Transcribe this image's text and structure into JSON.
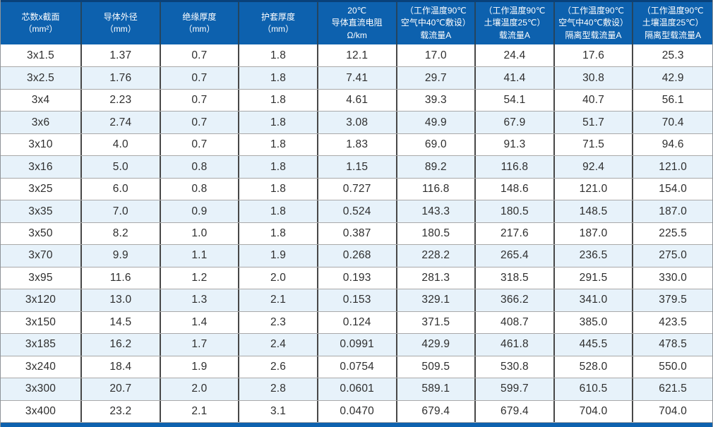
{
  "colors": {
    "header_bg": "#0d61ae",
    "header_top_edge": "#09417a",
    "header_divider": "#24455f",
    "header_text": "#ffffff",
    "row_bg": "#ffffff",
    "row_alt_bg": "#e7f2fa",
    "cell_divider": "#474747",
    "row_line": "#a9a9a9",
    "text": "#2e2e2e"
  },
  "table": {
    "columns": [
      {
        "name": "core-count-section",
        "lines": [
          "芯数x截面",
          "（mm²）"
        ]
      },
      {
        "name": "conductor-od",
        "lines": [
          "导体外径",
          "（mm）"
        ]
      },
      {
        "name": "insulation-thickness",
        "lines": [
          "绝缘厚度",
          "（mm）"
        ]
      },
      {
        "name": "sheath-thickness",
        "lines": [
          "护套厚度",
          "（mm）"
        ]
      },
      {
        "name": "dc-resistance-20c",
        "lines": [
          "20℃",
          "导体直流电阻",
          "Ω/km"
        ]
      },
      {
        "name": "ampacity-air-40c",
        "lines": [
          "（工作温度90℃",
          "空气中40℃敷设）",
          "载流量A"
        ]
      },
      {
        "name": "ampacity-soil-25c",
        "lines": [
          "（工作温度90℃",
          "土壤温度25℃）",
          "载流量A"
        ]
      },
      {
        "name": "isolated-ampacity-air-40c",
        "lines": [
          "（工作温度90℃",
          "空气中40℃敷设）",
          "隔离型载流量A"
        ]
      },
      {
        "name": "isolated-ampacity-soil-25c",
        "lines": [
          "（工作温度90℃",
          "土壤温度25℃）",
          "隔离型载流量A"
        ]
      }
    ],
    "rows": [
      [
        "3x1.5",
        "1.37",
        "0.7",
        "1.8",
        "12.1",
        "17.0",
        "24.4",
        "17.6",
        "25.3"
      ],
      [
        "3x2.5",
        "1.76",
        "0.7",
        "1.8",
        "7.41",
        "29.7",
        "41.4",
        "30.8",
        "42.9"
      ],
      [
        "3x4",
        "2.23",
        "0.7",
        "1.8",
        "4.61",
        "39.3",
        "54.1",
        "40.7",
        "56.1"
      ],
      [
        "3x6",
        "2.74",
        "0.7",
        "1.8",
        "3.08",
        "49.9",
        "67.9",
        "51.7",
        "70.4"
      ],
      [
        "3x10",
        "4.0",
        "0.7",
        "1.8",
        "1.83",
        "69.0",
        "91.3",
        "71.5",
        "94.6"
      ],
      [
        "3x16",
        "5.0",
        "0.8",
        "1.8",
        "1.15",
        "89.2",
        "116.8",
        "92.4",
        "121.0"
      ],
      [
        "3x25",
        "6.0",
        "0.8",
        "1.8",
        "0.727",
        "116.8",
        "148.6",
        "121.0",
        "154.0"
      ],
      [
        "3x35",
        "7.0",
        "0.9",
        "1.8",
        "0.524",
        "143.3",
        "180.5",
        "148.5",
        "187.0"
      ],
      [
        "3x50",
        "8.2",
        "1.0",
        "1.8",
        "0.387",
        "180.5",
        "217.6",
        "187.0",
        "225.5"
      ],
      [
        "3x70",
        "9.9",
        "1.1",
        "1.9",
        "0.268",
        "228.2",
        "265.4",
        "236.5",
        "275.0"
      ],
      [
        "3x95",
        "11.6",
        "1.2",
        "2.0",
        "0.193",
        "281.3",
        "318.5",
        "291.5",
        "330.0"
      ],
      [
        "3x120",
        "13.0",
        "1.3",
        "2.1",
        "0.153",
        "329.1",
        "366.2",
        "341.0",
        "379.5"
      ],
      [
        "3x150",
        "14.5",
        "1.4",
        "2.3",
        "0.124",
        "371.5",
        "408.7",
        "385.0",
        "423.5"
      ],
      [
        "3x185",
        "16.2",
        "1.7",
        "2.4",
        "0.0991",
        "429.9",
        "461.8",
        "445.5",
        "478.5"
      ],
      [
        "3x240",
        "18.4",
        "1.9",
        "2.6",
        "0.0754",
        "509.5",
        "530.8",
        "528.0",
        "550.0"
      ],
      [
        "3x300",
        "20.7",
        "2.0",
        "2.8",
        "0.0601",
        "589.1",
        "599.7",
        "610.5",
        "621.5"
      ],
      [
        "3x400",
        "23.2",
        "2.1",
        "3.1",
        "0.0470",
        "679.4",
        "679.4",
        "704.0",
        "704.0"
      ]
    ]
  }
}
